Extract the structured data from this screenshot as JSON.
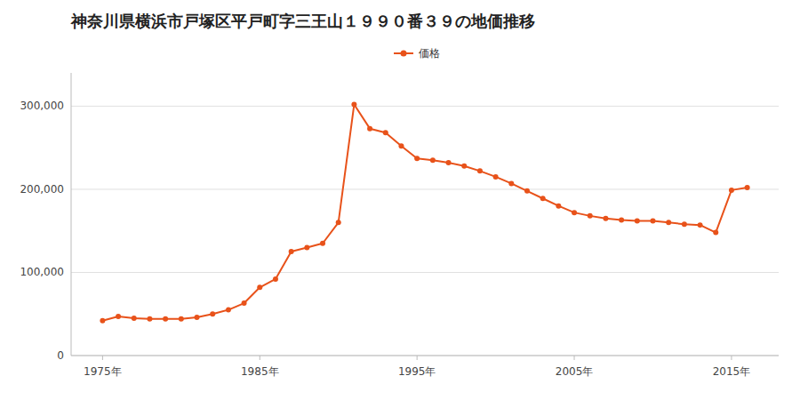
{
  "chart_data": {
    "type": "line",
    "title": "神奈川県横浜市戸塚区平戸町字三王山１９９０番３９の地価推移",
    "x": [
      1975,
      1976,
      1977,
      1978,
      1979,
      1980,
      1981,
      1982,
      1983,
      1984,
      1985,
      1986,
      1987,
      1988,
      1989,
      1990,
      1991,
      1992,
      1993,
      1994,
      1995,
      1996,
      1997,
      1998,
      1999,
      2000,
      2001,
      2002,
      2003,
      2004,
      2005,
      2006,
      2007,
      2008,
      2009,
      2010,
      2011,
      2012,
      2013,
      2014,
      2015,
      2016
    ],
    "series": [
      {
        "name": "価格",
        "color": "#e8521a",
        "marker": "circle",
        "values": [
          42000,
          47000,
          45000,
          44000,
          44000,
          44000,
          46000,
          50000,
          55000,
          63000,
          82000,
          92000,
          125000,
          130000,
          135000,
          160000,
          302000,
          273000,
          268000,
          252000,
          237000,
          235000,
          232000,
          228000,
          222000,
          215000,
          207000,
          198000,
          189000,
          180000,
          172000,
          168000,
          165000,
          163000,
          162000,
          162000,
          160000,
          158000,
          157000,
          148000,
          199000,
          202000
        ]
      }
    ],
    "xlim": [
      1973,
      2018
    ],
    "xticks": [
      {
        "value": 1975,
        "label": "1975年"
      },
      {
        "value": 1985,
        "label": "1985年"
      },
      {
        "value": 1995,
        "label": "1995年"
      },
      {
        "value": 2005,
        "label": "2005年"
      },
      {
        "value": 2015,
        "label": "2015年"
      }
    ],
    "ylim": [
      0,
      340000
    ],
    "yticks": [
      0,
      {
        "value": 100000,
        "label": "100,000"
      },
      {
        "value": 200000,
        "label": "200,000"
      },
      {
        "value": 300000,
        "label": "300,000"
      }
    ],
    "grid": true,
    "legend": "top"
  }
}
